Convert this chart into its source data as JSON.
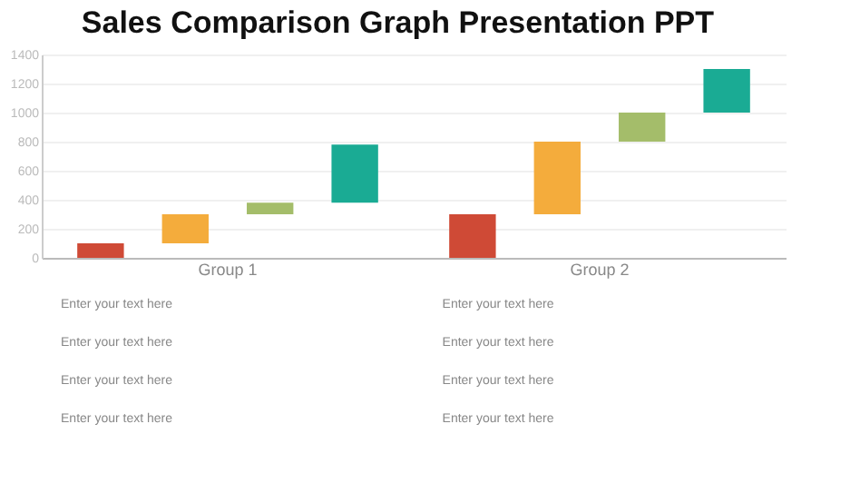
{
  "chart_data": {
    "type": "bar",
    "title": "Sales Comparison Graph Presentation PPT",
    "categories": [
      "Group 1",
      "Group 2"
    ],
    "series": [
      {
        "color": "#cf4a36",
        "base": [
          0,
          0
        ],
        "values": [
          100,
          300
        ]
      },
      {
        "color": "#f4ac3c",
        "base": [
          100,
          300
        ],
        "values": [
          200,
          500
        ]
      },
      {
        "color": "#a4bd6a",
        "base": [
          300,
          800
        ],
        "values": [
          80,
          200
        ]
      },
      {
        "color": "#1aab94",
        "base": [
          380,
          1000
        ],
        "values": [
          400,
          300
        ]
      }
    ],
    "ylim": [
      0,
      1400
    ],
    "yticks": [
      0,
      200,
      400,
      600,
      800,
      1000,
      1200,
      1400
    ],
    "grid": "y",
    "annotations": [
      "Enter your text here",
      "Enter your text here",
      "Enter your text here",
      "Enter your text here",
      "Enter your text here",
      "Enter your text here",
      "Enter your text here",
      "Enter your text here"
    ]
  }
}
